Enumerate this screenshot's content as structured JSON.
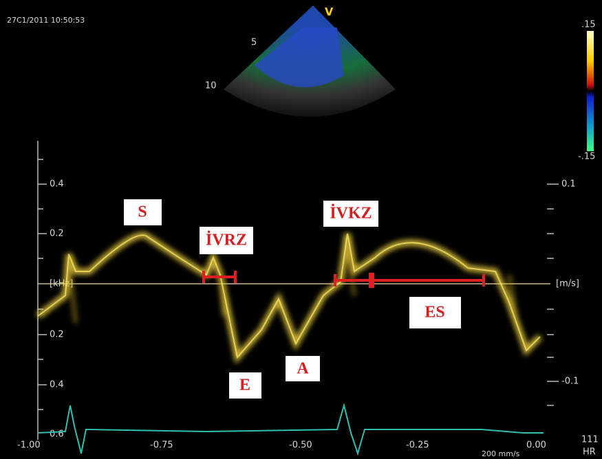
{
  "header": {
    "timestamp": "27C1/2011 10:50:53",
    "view": "V",
    "depth_mid": "5",
    "depth_far": "10"
  },
  "color_scale": {
    "top": ".15",
    "bottom": "-.15"
  },
  "left_axis": {
    "labels": [
      "0.4",
      "0.2",
      "[kHz]",
      "0.2",
      "0.4",
      "0.6"
    ]
  },
  "right_axis": {
    "labels": [
      "0.1",
      "[m/s]",
      "-0.1"
    ]
  },
  "bottom_axis": {
    "labels": [
      "-1.00",
      "-0.75",
      "-0.50",
      "-0.25",
      "0.00"
    ]
  },
  "footer": {
    "speed": "200 mm/s",
    "hr_value": "111",
    "hr_label": "HR"
  },
  "annotations": {
    "s": "S",
    "ivrz": "İVRZ",
    "ivkz": "İVKZ",
    "es": "ES",
    "e": "E",
    "a": "A"
  }
}
